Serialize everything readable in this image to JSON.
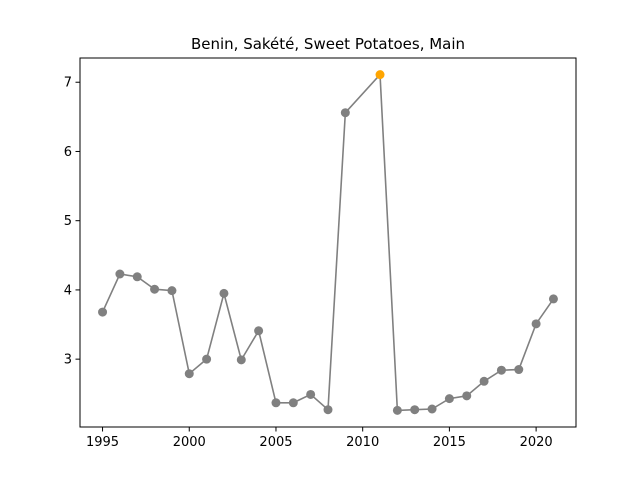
{
  "chart_data": {
    "type": "line",
    "title": "Benin, Sakété, Sweet Potatoes, Main",
    "xlabel": "",
    "ylabel": "",
    "x": [
      1995,
      1996,
      1997,
      1998,
      1999,
      2000,
      2001,
      2002,
      2003,
      2004,
      2005,
      2006,
      2007,
      2008,
      2009,
      2010,
      2011,
      2012,
      2013,
      2014,
      2015,
      2016,
      2017,
      2018,
      2019,
      2020,
      2021
    ],
    "series": [
      {
        "values": [
          3.68,
          4.23,
          4.19,
          4.01,
          3.99,
          2.79,
          3.0,
          3.95,
          2.99,
          3.41,
          2.37,
          2.37,
          2.49,
          2.27,
          6.56,
          null,
          7.11,
          2.26,
          2.27,
          2.28,
          2.43,
          2.47,
          2.68,
          2.84,
          2.85,
          3.51,
          3.87
        ],
        "color": "#808080"
      }
    ],
    "highlight": {
      "x": 2011,
      "y": 7.11,
      "color": "#ffa500"
    },
    "xlim": [
      1993.7,
      2022.3
    ],
    "ylim": [
      2.02,
      7.35
    ],
    "xticks": [
      1995,
      2000,
      2005,
      2010,
      2015,
      2020
    ],
    "yticks": [
      3,
      4,
      5,
      6,
      7
    ],
    "grid": false,
    "legend": "none"
  }
}
